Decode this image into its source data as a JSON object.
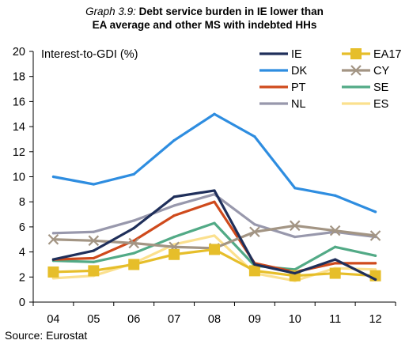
{
  "chart_data": {
    "type": "line",
    "title_prefix": "Graph 3.9:",
    "title_line1": "Debt service burden in IE lower than",
    "title_line2": "EA average and other MS with indebted HHs",
    "ylabel": "Interest-to-GDI (%)",
    "xlabel": "",
    "source": "Source: Eurostat",
    "categories": [
      "04",
      "05",
      "06",
      "07",
      "08",
      "09",
      "10",
      "11",
      "12"
    ],
    "ylim": [
      0,
      20
    ],
    "yticks": [
      0,
      2,
      4,
      6,
      8,
      10,
      12,
      14,
      16,
      18,
      20
    ],
    "grid": false,
    "legend_position": "top-right",
    "series": [
      {
        "name": "IE",
        "color": "#1f2f5a",
        "marker": "none",
        "values": [
          3.4,
          4.1,
          5.9,
          8.4,
          8.9,
          3.0,
          2.3,
          3.4,
          1.8
        ]
      },
      {
        "name": "EA17",
        "color": "#e6be2a",
        "marker": "square",
        "values": [
          2.4,
          2.5,
          3.0,
          3.8,
          4.2,
          2.5,
          2.1,
          2.3,
          2.1
        ]
      },
      {
        "name": "DK",
        "color": "#2e8de0",
        "marker": "none",
        "values": [
          10.0,
          9.4,
          10.2,
          12.9,
          15.0,
          13.2,
          9.1,
          8.5,
          7.2
        ]
      },
      {
        "name": "CY",
        "color": "#a39584",
        "marker": "x",
        "values": [
          5.0,
          4.9,
          4.7,
          4.4,
          4.3,
          5.6,
          6.1,
          5.7,
          5.3
        ]
      },
      {
        "name": "PT",
        "color": "#cf4a1c",
        "marker": "none",
        "values": [
          3.4,
          3.5,
          4.9,
          6.9,
          8.0,
          3.1,
          2.4,
          3.1,
          3.1
        ]
      },
      {
        "name": "SE",
        "color": "#52aa86",
        "marker": "none",
        "values": [
          3.3,
          3.2,
          3.9,
          5.2,
          6.3,
          2.9,
          2.6,
          4.4,
          3.7
        ]
      },
      {
        "name": "NL",
        "color": "#9898ac",
        "marker": "none",
        "values": [
          5.5,
          5.6,
          6.5,
          7.7,
          8.6,
          6.2,
          5.2,
          5.6,
          5.2
        ]
      },
      {
        "name": "ES",
        "color": "#fbe08e",
        "marker": "none",
        "values": [
          1.9,
          2.1,
          3.1,
          4.6,
          5.3,
          2.3,
          1.7,
          2.7,
          2.6
        ]
      }
    ]
  }
}
